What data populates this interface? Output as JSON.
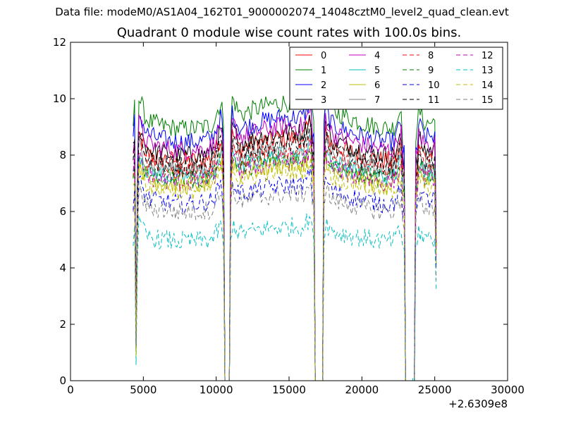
{
  "chart_data": {
    "type": "line",
    "suptitle": "Data file: modeM0/AS1A04_162T01_9000002074_14048cztM0_level2_quad_clean.evt",
    "title": "Quadrant 0 module wise count rates with 100.0s bins.",
    "xlabel": "",
    "ylabel": "",
    "xlim": [
      0,
      30000
    ],
    "ylim": [
      0,
      12
    ],
    "x_ticks": [
      "0",
      "5000",
      "10000",
      "15000",
      "20000",
      "25000",
      "30000"
    ],
    "y_ticks": [
      "0",
      "2",
      "4",
      "6",
      "8",
      "10",
      "12"
    ],
    "x_offset_label": "+2.6309e8",
    "grid": false,
    "legend_position": "top-right",
    "gaps": [
      [
        4600,
        10600
      ],
      [
        11000,
        16750
      ],
      [
        17450,
        22900
      ],
      [
        23500,
        25200
      ]
    ],
    "segments": [
      [
        4300,
        10500
      ],
      [
        11000,
        16700
      ],
      [
        17300,
        22900
      ],
      [
        23700,
        25200
      ]
    ],
    "series": [
      {
        "name": "0",
        "color": "#ff0000",
        "style": "solid",
        "level": 8.2
      },
      {
        "name": "1",
        "color": "#008000",
        "style": "solid",
        "level": 9.4
      },
      {
        "name": "2",
        "color": "#0000ff",
        "style": "solid",
        "level": 8.9
      },
      {
        "name": "3",
        "color": "#000000",
        "style": "solid",
        "level": 8.4
      },
      {
        "name": "4",
        "color": "#bf00bf",
        "style": "solid",
        "level": 8.6
      },
      {
        "name": "5",
        "color": "#00bfbf",
        "style": "solid",
        "level": 7.6
      },
      {
        "name": "6",
        "color": "#bfbf00",
        "style": "solid",
        "level": 7.3
      },
      {
        "name": "7",
        "color": "#808080",
        "style": "solid",
        "level": 7.9
      },
      {
        "name": "8",
        "color": "#ff0000",
        "style": "dashed",
        "level": 7.8
      },
      {
        "name": "9",
        "color": "#008000",
        "style": "dashed",
        "level": 7.5
      },
      {
        "name": "10",
        "color": "#0000ff",
        "style": "dashed",
        "level": 6.6
      },
      {
        "name": "11",
        "color": "#000000",
        "style": "dashed",
        "level": 8.0
      },
      {
        "name": "12",
        "color": "#bf00bf",
        "style": "dashed",
        "level": 7.4
      },
      {
        "name": "13",
        "color": "#00bfbf",
        "style": "dashed",
        "level": 5.2
      },
      {
        "name": "14",
        "color": "#bfbf00",
        "style": "dashed",
        "level": 7.1
      },
      {
        "name": "15",
        "color": "#808080",
        "style": "dashed",
        "level": 6.3
      }
    ]
  }
}
